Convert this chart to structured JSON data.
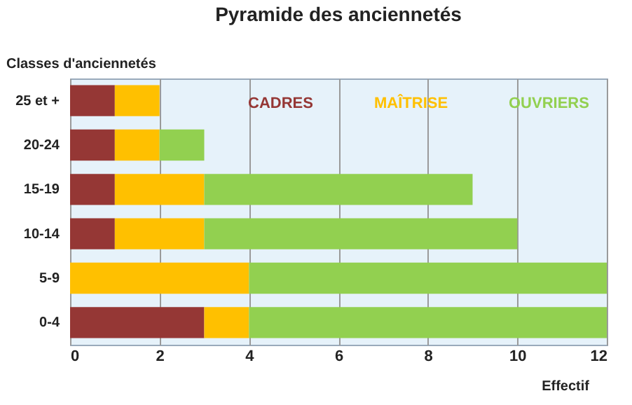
{
  "chart_data": {
    "type": "bar",
    "title": "Pyramide des anciennetés",
    "xlabel": "Effectif",
    "ylabel": "Classes d'anciennetés",
    "orientation": "horizontal",
    "stacked": true,
    "categories": [
      "25 et +",
      "20-24",
      "15-19",
      "10-14",
      "5-9",
      "0-4"
    ],
    "series": [
      {
        "name": "CADRES",
        "color": "#953735",
        "values": [
          1,
          1,
          1,
          1,
          0,
          3
        ]
      },
      {
        "name": "MAÎTRISE",
        "color": "#ffc000",
        "values": [
          1,
          1,
          2,
          2,
          4,
          1
        ]
      },
      {
        "name": "OUVRIERS",
        "color": "#92d050",
        "values": [
          0,
          1,
          6,
          7,
          8,
          8
        ]
      }
    ],
    "xlim": [
      0,
      12
    ],
    "xticks": [
      0,
      2,
      4,
      6,
      8,
      10,
      12
    ],
    "grid": "x",
    "legend": "top right"
  }
}
